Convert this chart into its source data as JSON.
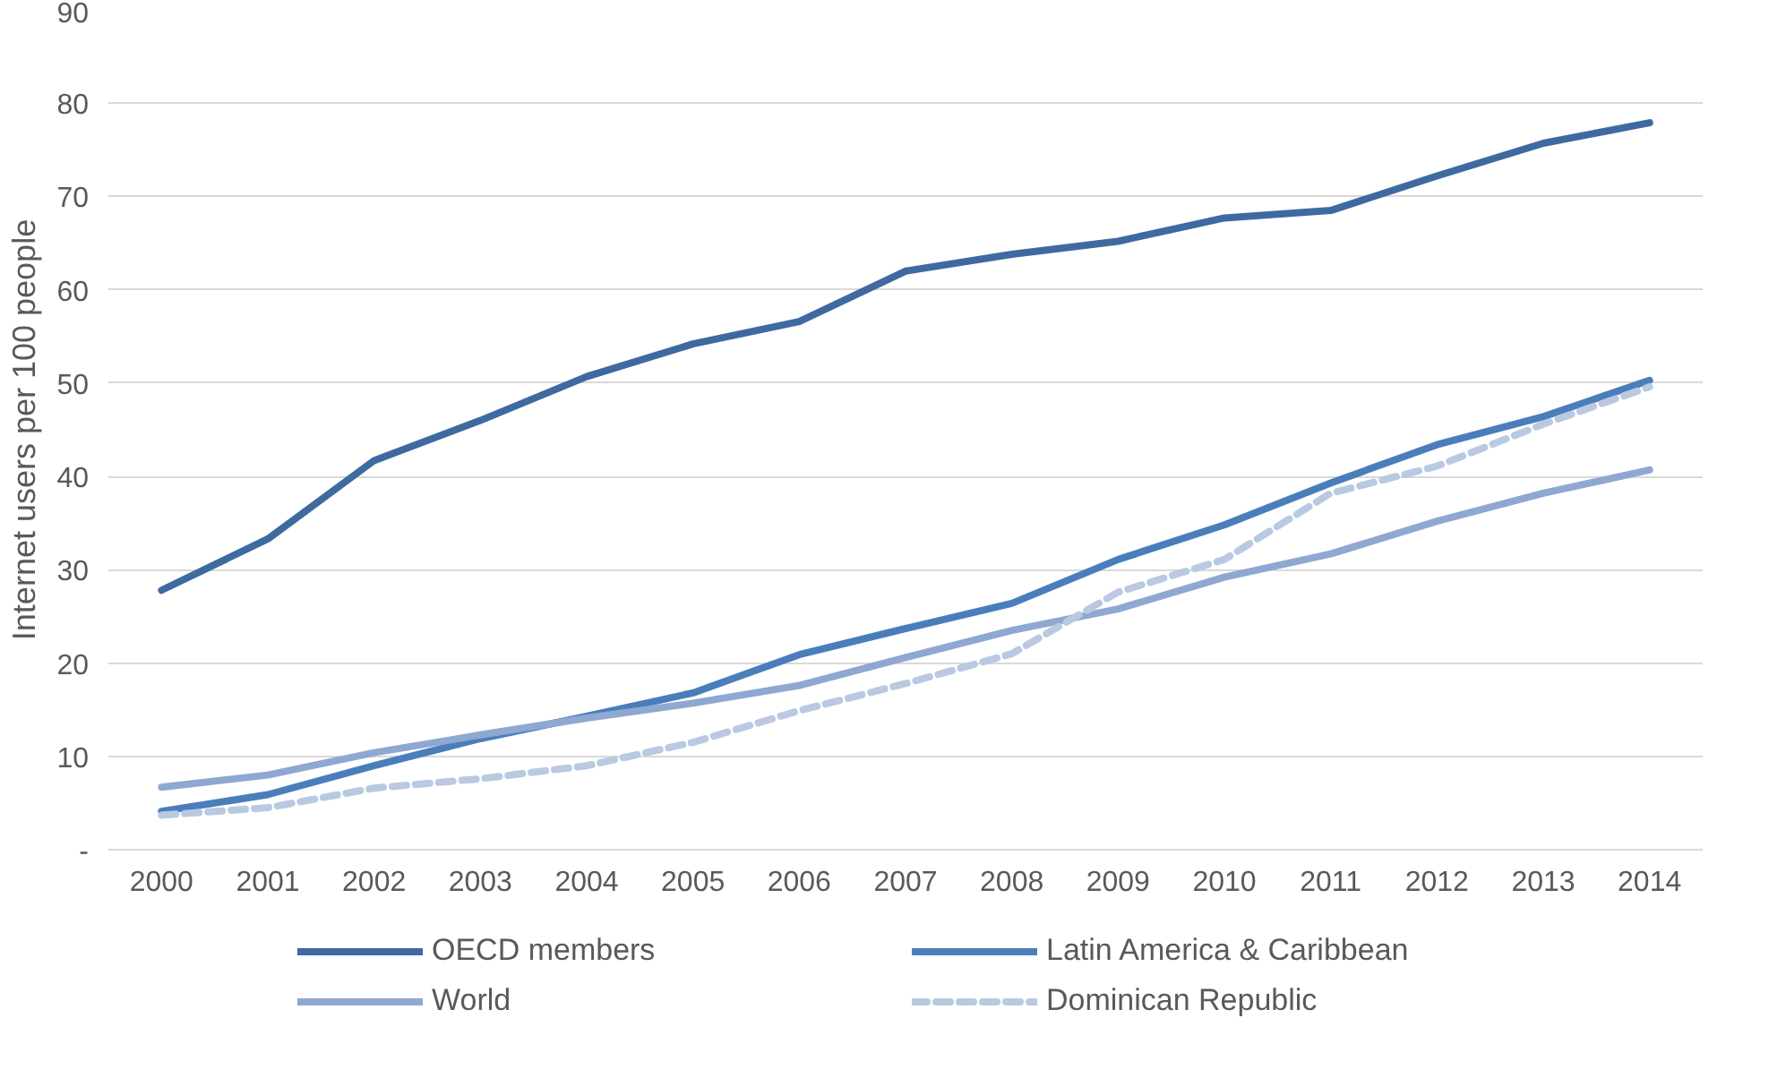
{
  "chart_data": {
    "type": "line",
    "ylabel": "Internet users per 100 people",
    "categories": [
      "2000",
      "2001",
      "2002",
      "2003",
      "2004",
      "2005",
      "2006",
      "2007",
      "2008",
      "2009",
      "2010",
      "2011",
      "2012",
      "2013",
      "2014"
    ],
    "ylim": [
      0,
      90
    ],
    "yticks": [
      {
        "value": 0,
        "label": "-"
      },
      10,
      20,
      30,
      40,
      50,
      60,
      70,
      80,
      90
    ],
    "grid": "y",
    "legend": "bottom",
    "line_style": "solid",
    "series": [
      {
        "name": "OECD members",
        "color": "#3e6aa0",
        "values": [
          27.8,
          33.3,
          41.7,
          46,
          50.7,
          54.2,
          56.6,
          62,
          63.8,
          65.2,
          67.7,
          68.5,
          72.2,
          75.7,
          77.9
        ]
      },
      {
        "name": "Latin America & Caribbean",
        "color": "#4a7ebb",
        "values": [
          4.1,
          5.9,
          9,
          11.9,
          14.3,
          16.8,
          20.9,
          23.7,
          26.4,
          31.1,
          34.8,
          39.3,
          43.4,
          46.4,
          50.3
        ]
      },
      {
        "name": "World",
        "color": "#8fa8d1",
        "values": [
          6.7,
          8,
          10.4,
          12.3,
          14.1,
          15.7,
          17.6,
          20.6,
          23.5,
          25.8,
          29.2,
          31.7,
          35.2,
          38.2,
          40.7
        ]
      },
      {
        "name": "Dominican Republic",
        "color": "#b9c9e2",
        "line_style": "dashed",
        "values": [
          3.7,
          4.5,
          6.6,
          7.6,
          9,
          11.5,
          14.9,
          17.8,
          21,
          27.6,
          31.1,
          38.2,
          41.1,
          45.6,
          49.6
        ]
      }
    ]
  }
}
